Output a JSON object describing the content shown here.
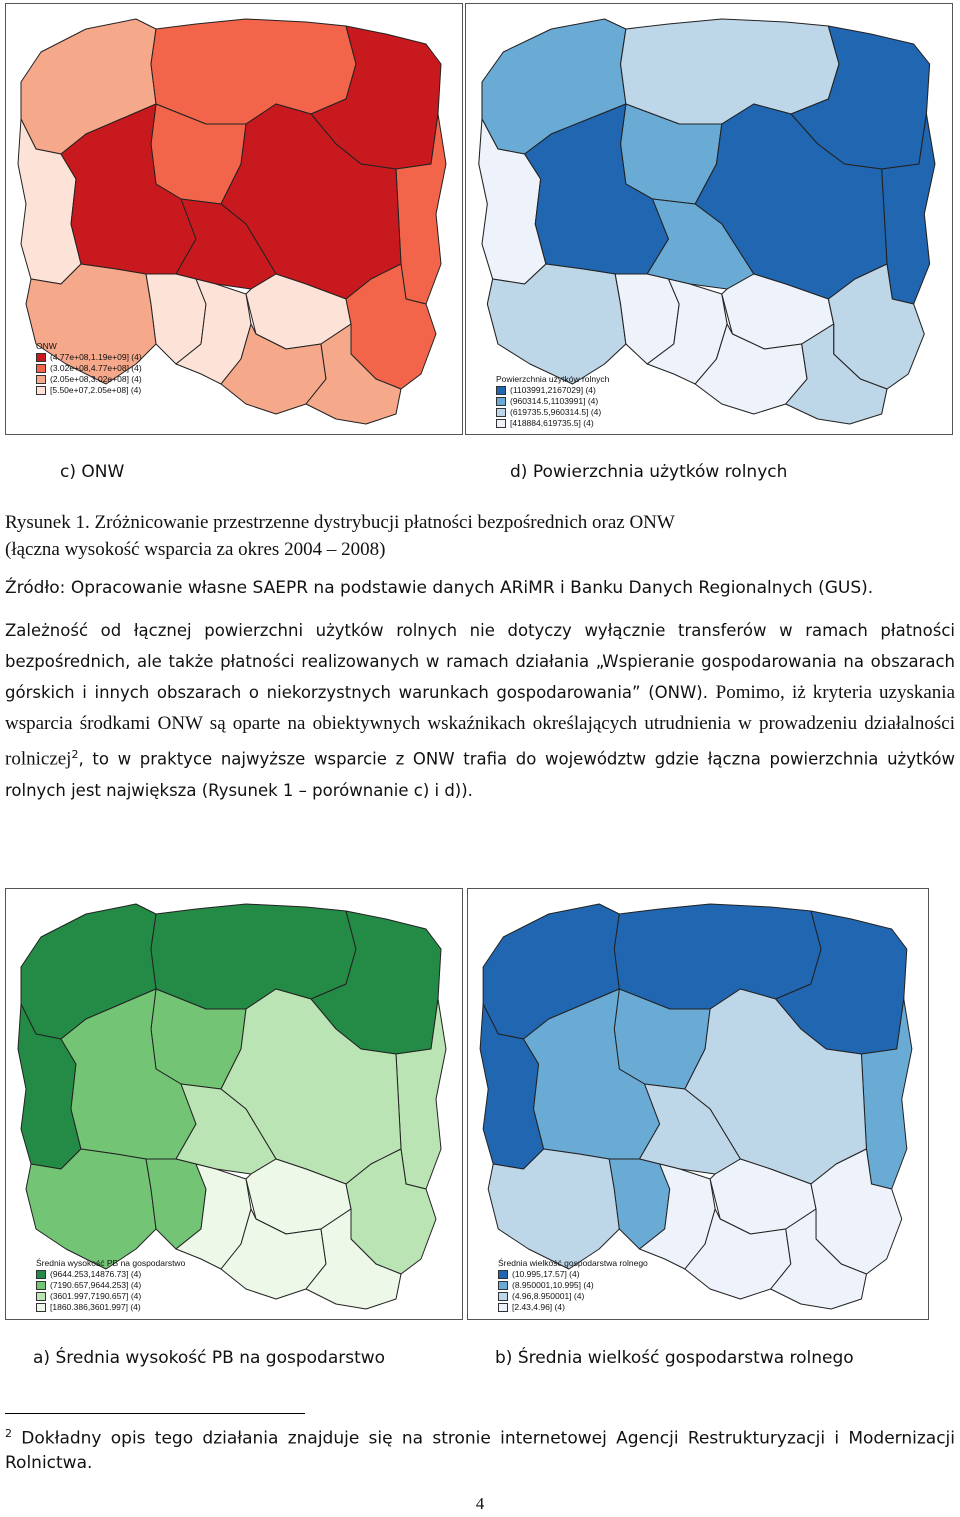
{
  "maps": {
    "c": {
      "legend_title": "ONW",
      "legend_items": [
        {
          "label": "(4.77e+08,1.19e+09] (4)",
          "color": "#c8191e"
        },
        {
          "label": "(3.02e+08,4.77e+08] (4)",
          "color": "#f2654a"
        },
        {
          "label": "(2.05e+08,3.02e+08] (4)",
          "color": "#f6a88a"
        },
        {
          "label": "[5.50e+07,2.05e+08] (4)",
          "color": "#fde2d7"
        }
      ],
      "caption": "c) ONW"
    },
    "d": {
      "legend_title": "Powierzchnia użytków rolnych",
      "legend_items": [
        {
          "label": "(1103991,2167029] (4)",
          "color": "#2166b0"
        },
        {
          "label": "(960314.5,1103991] (4)",
          "color": "#6aabd6"
        },
        {
          "label": "(619735.5,960314.5] (4)",
          "color": "#bdd6e8"
        },
        {
          "label": "[418884,619735.5] (4)",
          "color": "#eef3fb"
        }
      ],
      "caption": "d) Powierzchnia użytków rolnych"
    },
    "a": {
      "legend_title": "Średnia wysokość PB na gospodarstwo",
      "legend_items": [
        {
          "label": "(9644.253,14876.73] (4)",
          "color": "#238b45"
        },
        {
          "label": "(7190.657,9644.253] (4)",
          "color": "#74c476"
        },
        {
          "label": "(3601.997,7190.657] (4)",
          "color": "#bae4b3"
        },
        {
          "label": "[1860.386,3601.997] (4)",
          "color": "#edf8e9"
        }
      ],
      "caption": "a) Średnia wysokość PB na gospodarstwo"
    },
    "b": {
      "legend_title": "Średnia wielkość gospodarstwa rolnego",
      "legend_items": [
        {
          "label": "(10.995,17.57] (4)",
          "color": "#2166b0"
        },
        {
          "label": "(8.950001,10.995] (4)",
          "color": "#6aabd6"
        },
        {
          "label": "(4.96,8.950001] (4)",
          "color": "#bdd6e8"
        },
        {
          "label": "[2.43,4.96] (4)",
          "color": "#eef3fb"
        }
      ],
      "caption": "b) Średnia wielkość gospodarstwa rolnego"
    }
  },
  "figure_caption_line1": "Rysunek 1. Zróżnicowanie przestrzenne dystrybucji płatności bezpośrednich oraz ONW",
  "figure_caption_line2": "(łączna wysokość wsparcia za okres 2004 – 2008)",
  "source_line": "Źródło: Opracowanie własne SAEPR na podstawie danych ARiMR i Banku Danych Regionalnych (GUS).",
  "paragraph_part1": "Zależność od łącznej powierzchni użytków rolnych nie dotyczy wyłącznie transferów w ramach płatności bezpośrednich, ale także płatności realizowanych w ramach działania „Wspieranie gospodarowania na obszarach górskich i innych obszarach o niekorzystnych warunkach gospodarowania” (ONW). ",
  "paragraph_part2": "Pomimo, iż kryteria uzyskania wsparcia środkami ONW są oparte na obiektywnych wskaźnikach określających utrudnienia w prowadzeniu działalności rolniczej",
  "paragraph_footnote_ref": "2",
  "paragraph_part3": ", to w praktyce najwyższe wsparcie z ONW trafia do województw gdzie łączna powierzchnia użytków rolnych jest największa (Rysunek 1 – porównanie c) i d)).",
  "footnote_number": "2",
  "footnote_text": " Dokładny opis tego działania znajduje się na stronie internetowej Agencji Restrukturyzacji i Modernizacji Rolnictwa.",
  "page_number": "4"
}
